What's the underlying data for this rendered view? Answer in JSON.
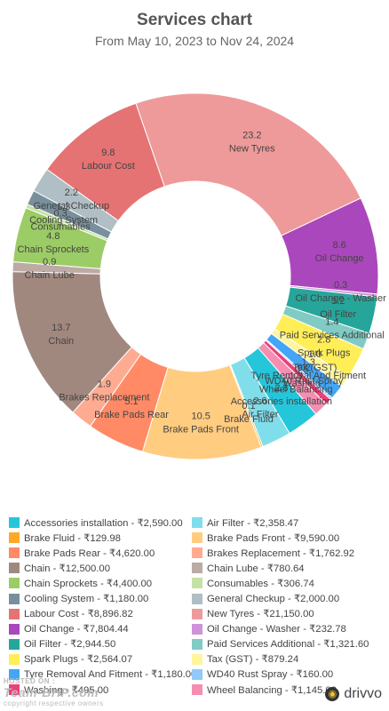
{
  "header": {
    "title": "Services chart",
    "subtitle": "From May 10, 2023 to Nov 24, 2024"
  },
  "chart_data": {
    "type": "pie",
    "title": "Services chart",
    "subtitle": "From May 10, 2023 to Nov 24, 2024",
    "slices": [
      {
        "label": "New Tyres",
        "legend": "New Tyres - ₹21,150.00",
        "value": 21150.0,
        "percent": "23.2",
        "color": "#EF9A9A"
      },
      {
        "label": "Oil Change",
        "legend": "Oil Change - ₹7,804.44",
        "value": 7804.44,
        "percent": "8.6",
        "color": "#AB47BC"
      },
      {
        "label": "Oil Change - Washer",
        "legend": "Oil Change - Washer - ₹232.78",
        "value": 232.78,
        "percent": "0.3",
        "color": "#CE93D8"
      },
      {
        "label": "Oil Filter",
        "legend": "Oil Filter - ₹2,944.50",
        "value": 2944.5,
        "percent": "3.2",
        "color": "#26A69A"
      },
      {
        "label": "Paid Services Additional",
        "legend": "Paid Services Additional - ₹1,321.60",
        "value": 1321.6,
        "percent": "1.4",
        "color": "#80CBC4"
      },
      {
        "label": "Spark Plugs",
        "legend": "Spark Plugs - ₹2,564.07",
        "value": 2564.07,
        "percent": "2.8",
        "color": "#FFEE58"
      },
      {
        "label": "Tax (GST)",
        "legend": "Tax (GST) - ₹879.24",
        "value": 879.24,
        "percent": "1.0",
        "color": "#FFF59D"
      },
      {
        "label": "Tyre Removal And Fitment",
        "legend": "Tyre Removal And Fitment - ₹1,180.00",
        "value": 1180.0,
        "percent": "1.3",
        "color": "#42A5F5"
      },
      {
        "label": "WD40 Rust Spray",
        "legend": "WD40 Rust Spray - ₹160.00",
        "value": 160.0,
        "percent": "0.2",
        "color": "#90CAF9"
      },
      {
        "label": "Washing",
        "legend": "Washing - ₹495.00",
        "value": 495.0,
        "percent": "0.5",
        "color": "#EC407A"
      },
      {
        "label": "Wheel Balancing",
        "legend": "Wheel Balancing - ₹1,145.00",
        "value": 1145.0,
        "percent": "1.3",
        "color": "#F48FB1"
      },
      {
        "label": "Accessories installation",
        "legend": "Accessories installation - ₹2,590.00",
        "value": 2590.0,
        "percent": "2.8",
        "color": "#26C6DA"
      },
      {
        "label": "Air Filter",
        "legend": "Air Filter - ₹2,358.47",
        "value": 2358.47,
        "percent": "2.6",
        "color": "#80DEEA"
      },
      {
        "label": "Brake Fluid",
        "legend": "Brake Fluid - ₹129.98",
        "value": 129.98,
        "percent": "0.1",
        "color": "#FFA726"
      },
      {
        "label": "Brake Pads Front",
        "legend": "Brake Pads Front - ₹9,590.00",
        "value": 9590.0,
        "percent": "10.5",
        "color": "#FFCC80"
      },
      {
        "label": "Brake Pads Rear",
        "legend": "Brake Pads Rear - ₹4,620.00",
        "value": 4620.0,
        "percent": "5.1",
        "color": "#FF8A65"
      },
      {
        "label": "Brakes Replacement",
        "legend": "Brakes Replacement - ₹1,762.92",
        "value": 1762.92,
        "percent": "1.9",
        "color": "#FFAB91"
      },
      {
        "label": "Chain",
        "legend": "Chain - ₹12,500.00",
        "value": 12500.0,
        "percent": "13.7",
        "color": "#A1887F"
      },
      {
        "label": "Chain Lube",
        "legend": "Chain Lube - ₹780.64",
        "value": 780.64,
        "percent": "0.9",
        "color": "#BCAAA4"
      },
      {
        "label": "Chain Sprockets",
        "legend": "Chain Sprockets - ₹4,400.00",
        "value": 4400.0,
        "percent": "4.8",
        "color": "#9CCC65"
      },
      {
        "label": "Consumables",
        "legend": "Consumables - ₹306.74",
        "value": 306.74,
        "percent": "0.3",
        "color": "#C5E1A5"
      },
      {
        "label": "Cooling System",
        "legend": "Cooling System - ₹1,180.00",
        "value": 1180.0,
        "percent": "1.3",
        "color": "#78909C"
      },
      {
        "label": "General Checkup",
        "legend": "General Checkup - ₹2,000.00",
        "value": 2000.0,
        "percent": "2.2",
        "color": "#B0BEC5"
      },
      {
        "label": "Labour Cost",
        "legend": "Labour Cost - ₹8,896.82",
        "value": 8896.82,
        "percent": "9.8",
        "color": "#E57373"
      }
    ],
    "legend_order": [
      "Accessories installation",
      "Air Filter",
      "Brake Fluid",
      "Brake Pads Front",
      "Brake Pads Rear",
      "Brakes Replacement",
      "Chain",
      "Chain Lube",
      "Chain Sprockets",
      "Consumables",
      "Cooling System",
      "General Checkup",
      "Labour Cost",
      "New Tyres",
      "Oil Change",
      "Oil Change - Washer",
      "Oil Filter",
      "Paid Services Additional",
      "Spark Plugs",
      "Tax (GST)",
      "Tyre Removal And Fitment",
      "WD40 Rust Spray",
      "Washing",
      "Wheel Balancing"
    ],
    "legend_placement": "bottom",
    "hole": "donut"
  },
  "footer": {
    "watermark": "Team-BHP.com",
    "watermark_sub": "HOSTED ON :",
    "watermark_copy": "copyright respective owners",
    "brand": "drivvo"
  }
}
